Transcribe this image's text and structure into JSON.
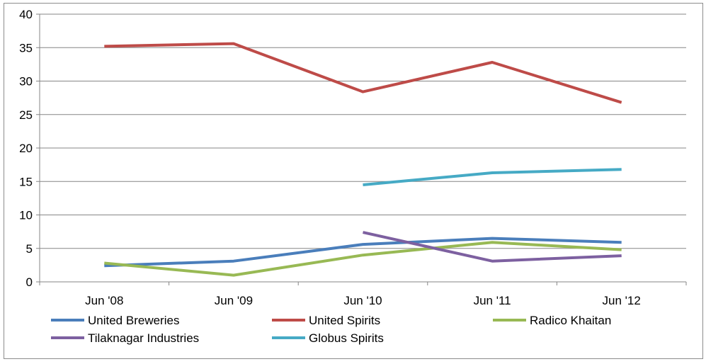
{
  "chart_data": {
    "type": "line",
    "categories": [
      "Jun '08",
      "Jun '09",
      "Jun '10",
      "Jun '11",
      "Jun '12"
    ],
    "ylim": [
      0,
      40
    ],
    "yticks": [
      0,
      5,
      10,
      15,
      20,
      25,
      30,
      35,
      40
    ],
    "grid": true,
    "legend_position": "bottom",
    "series": [
      {
        "name": "United Breweries",
        "color": "#4a7ebb",
        "values": [
          2.4,
          3.1,
          5.6,
          6.5,
          5.9
        ]
      },
      {
        "name": "United Spirits",
        "color": "#be4b48",
        "values": [
          35.2,
          35.6,
          28.4,
          32.8,
          26.8
        ]
      },
      {
        "name": "Radico Khaitan",
        "color": "#98b954",
        "values": [
          2.8,
          1.0,
          4.0,
          5.9,
          4.8
        ]
      },
      {
        "name": "Tilaknagar Industries",
        "color": "#7d60a0",
        "values": [
          null,
          null,
          7.4,
          3.1,
          3.9
        ]
      },
      {
        "name": "Globus Spirits",
        "color": "#46aac5",
        "values": [
          null,
          null,
          14.5,
          16.3,
          16.8
        ]
      }
    ]
  }
}
